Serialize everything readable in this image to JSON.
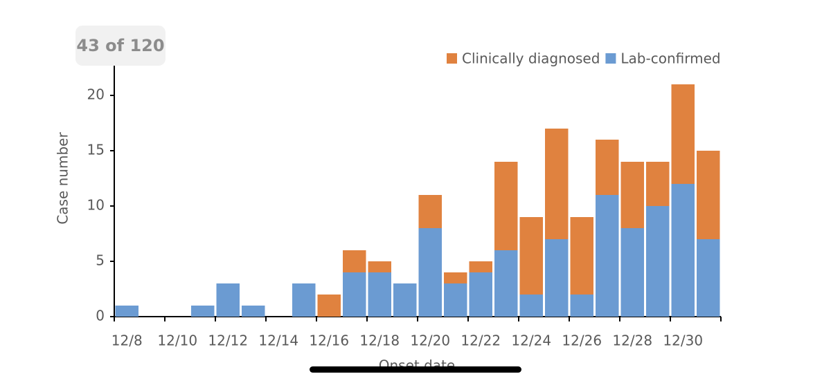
{
  "viewer": {
    "counter": "43 of 120"
  },
  "chart_data": {
    "type": "stacked-bar",
    "x_label": "Onset date",
    "y_label": "Case number",
    "categories": [
      "12/8",
      null,
      "12/10",
      null,
      "12/12",
      null,
      "12/14",
      null,
      "12/16",
      null,
      "12/18",
      null,
      "12/20",
      null,
      "12/22",
      null,
      "12/24",
      null,
      "12/26",
      null,
      "12/28",
      null,
      "12/30",
      null
    ],
    "series": [
      {
        "name": "Clinically diagnosed",
        "color": "#e0823f",
        "values": [
          0,
          0,
          0,
          0,
          0,
          0,
          0,
          0,
          2,
          2,
          1,
          0,
          3,
          1,
          1,
          8,
          7,
          10,
          7,
          5,
          6,
          4,
          9,
          8
        ]
      },
      {
        "name": "Lab-confirmed",
        "color": "#6b9bd2",
        "values": [
          1,
          0,
          0,
          1,
          3,
          1,
          0,
          3,
          0,
          4,
          4,
          3,
          8,
          3,
          4,
          6,
          2,
          7,
          2,
          11,
          8,
          10,
          12,
          7
        ]
      }
    ],
    "ylim": [
      0,
      22.5
    ],
    "yticks": [
      0,
      5,
      10,
      15,
      20
    ],
    "legend": "top-right"
  }
}
